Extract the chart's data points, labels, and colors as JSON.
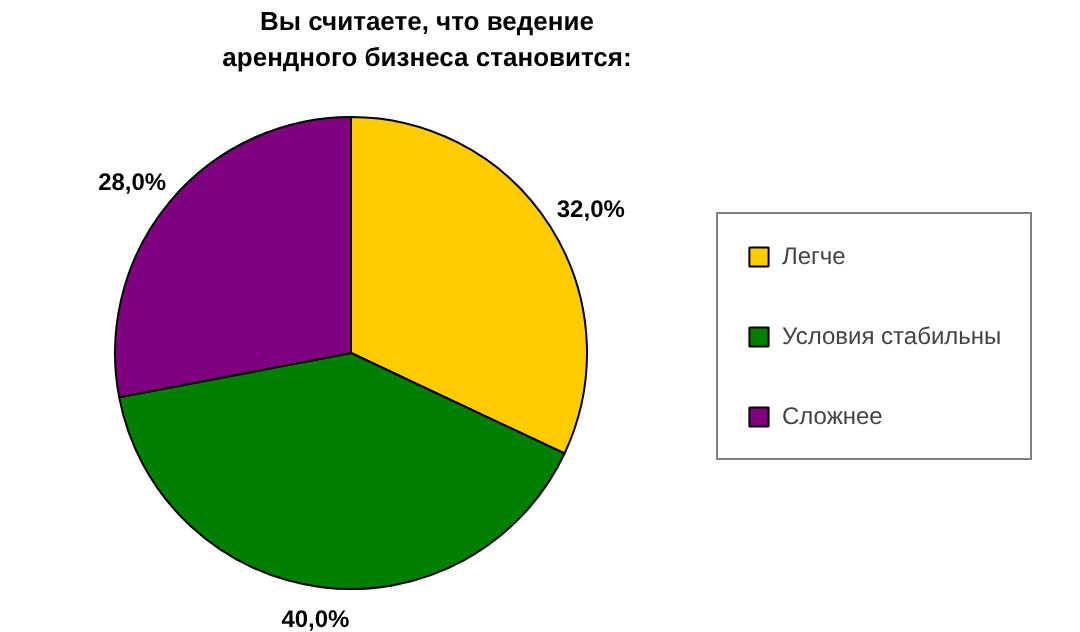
{
  "chart_data": {
    "type": "pie",
    "title": "Вы считаете, что ведение\nарендного бизнеса становится:",
    "categories": [
      "Легче",
      "Условия стабильны",
      "Сложнее"
    ],
    "values": [
      32,
      40,
      28
    ],
    "colors": [
      "#ffcc00",
      "#008000",
      "#800080"
    ],
    "value_labels": [
      "32,0%",
      "40,0%",
      "28,0%"
    ],
    "legend": "right"
  }
}
